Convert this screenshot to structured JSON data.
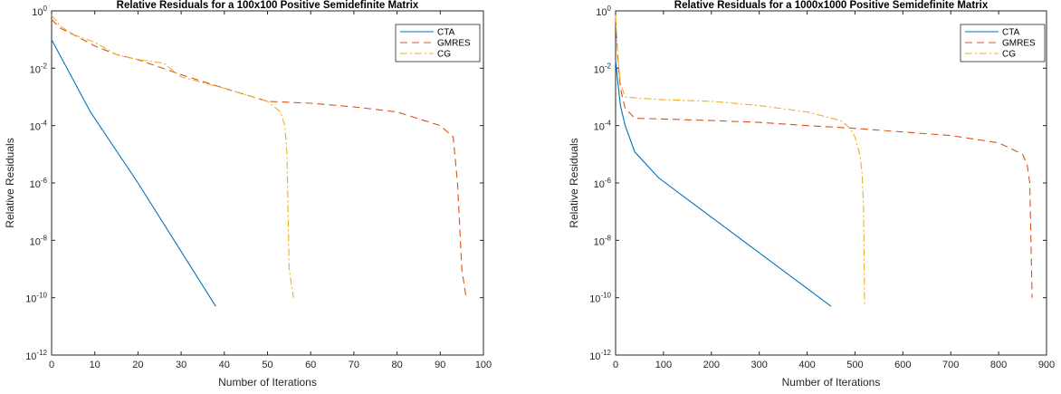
{
  "chart_data": [
    {
      "type": "line",
      "title": "Relative Residuals for a 100x100 Positive Semidefinite Matrix",
      "xlabel": "Number of Iterations",
      "ylabel": "Relative Residuals",
      "xlim": [
        0,
        100
      ],
      "ylim_log10": [
        -12,
        0
      ],
      "yscale": "log",
      "grid": false,
      "legend": "top-right",
      "xticks": [
        "0",
        "10",
        "20",
        "30",
        "40",
        "50",
        "60",
        "70",
        "80",
        "90",
        "100"
      ],
      "yticks": [
        {
          "base": "10",
          "exp": "0"
        },
        {
          "base": "10",
          "exp": "-2"
        },
        {
          "base": "10",
          "exp": "-4"
        },
        {
          "base": "10",
          "exp": "-6"
        },
        {
          "base": "10",
          "exp": "-8"
        },
        {
          "base": "10",
          "exp": "-10"
        },
        {
          "base": "10",
          "exp": "-12"
        }
      ],
      "series": [
        {
          "name": "CTA",
          "color": "#0072BD",
          "dash": "solid",
          "x": [
            0,
            9,
            20,
            38
          ],
          "y": [
            0.1,
            0.0003,
            1e-06,
            5e-11
          ]
        },
        {
          "name": "GMRES",
          "color": "#D95319",
          "dash": "dashed",
          "x": [
            0,
            2,
            5,
            10,
            15,
            20,
            30,
            40,
            50,
            60,
            70,
            80,
            90,
            93,
            94,
            95,
            96
          ],
          "y": [
            0.5,
            0.25,
            0.15,
            0.06,
            0.03,
            0.02,
            0.006,
            0.002,
            0.0007,
            0.0006,
            0.00045,
            0.0003,
            0.0001,
            4e-05,
            1e-06,
            1e-09,
            1e-10
          ]
        },
        {
          "name": "CG",
          "color": "#EDB120",
          "dash": "dashdot",
          "x": [
            0,
            2,
            5,
            10,
            15,
            20,
            26,
            30,
            40,
            50,
            53,
            54,
            54.5,
            55,
            56
          ],
          "y": [
            0.7,
            0.3,
            0.15,
            0.08,
            0.03,
            0.02,
            0.015,
            0.005,
            0.002,
            0.0007,
            0.0003,
            0.0001,
            1e-05,
            1e-09,
            1e-10
          ]
        }
      ]
    },
    {
      "type": "line",
      "title": "Relative Residuals for a 1000x1000 Positive Semidefinite Matrix",
      "xlabel": "Number of Iterations",
      "ylabel": "Relative Residuals",
      "xlim": [
        0,
        900
      ],
      "ylim_log10": [
        -12,
        0
      ],
      "yscale": "log",
      "grid": false,
      "legend": "top-right",
      "xticks": [
        "0",
        "100",
        "200",
        "300",
        "400",
        "500",
        "600",
        "700",
        "800",
        "900"
      ],
      "yticks": [
        {
          "base": "10",
          "exp": "0"
        },
        {
          "base": "10",
          "exp": "-2"
        },
        {
          "base": "10",
          "exp": "-4"
        },
        {
          "base": "10",
          "exp": "-6"
        },
        {
          "base": "10",
          "exp": "-8"
        },
        {
          "base": "10",
          "exp": "-10"
        },
        {
          "base": "10",
          "exp": "-12"
        }
      ],
      "series": [
        {
          "name": "CTA",
          "color": "#0072BD",
          "dash": "solid",
          "x": [
            0,
            5,
            10,
            20,
            40,
            90,
            450
          ],
          "y": [
            0.02,
            0.003,
            0.0005,
            0.0001,
            1.2e-05,
            1.5e-06,
            5e-11
          ]
        },
        {
          "name": "GMRES",
          "color": "#D95319",
          "dash": "dashed",
          "x": [
            0,
            5,
            10,
            20,
            40,
            100,
            200,
            300,
            400,
            500,
            600,
            700,
            800,
            850,
            860,
            865,
            870
          ],
          "y": [
            0.5,
            0.02,
            0.002,
            0.0004,
            0.00018,
            0.00017,
            0.00015,
            0.00013,
            0.0001,
            8e-05,
            6e-05,
            4.5e-05,
            2.5e-05,
            1e-05,
            4e-06,
            1e-06,
            1e-10
          ]
        },
        {
          "name": "CG",
          "color": "#EDB120",
          "dash": "dashdot",
          "x": [
            0,
            5,
            10,
            20,
            50,
            100,
            200,
            300,
            400,
            470,
            490,
            500,
            510,
            515,
            518,
            520
          ],
          "y": [
            0.7,
            0.02,
            0.003,
            0.001,
            0.0009,
            0.0008,
            0.0007,
            0.0005,
            0.0003,
            0.00015,
            8e-05,
            4e-05,
            1e-05,
            2e-06,
            1e-07,
            5e-11
          ]
        }
      ]
    }
  ]
}
